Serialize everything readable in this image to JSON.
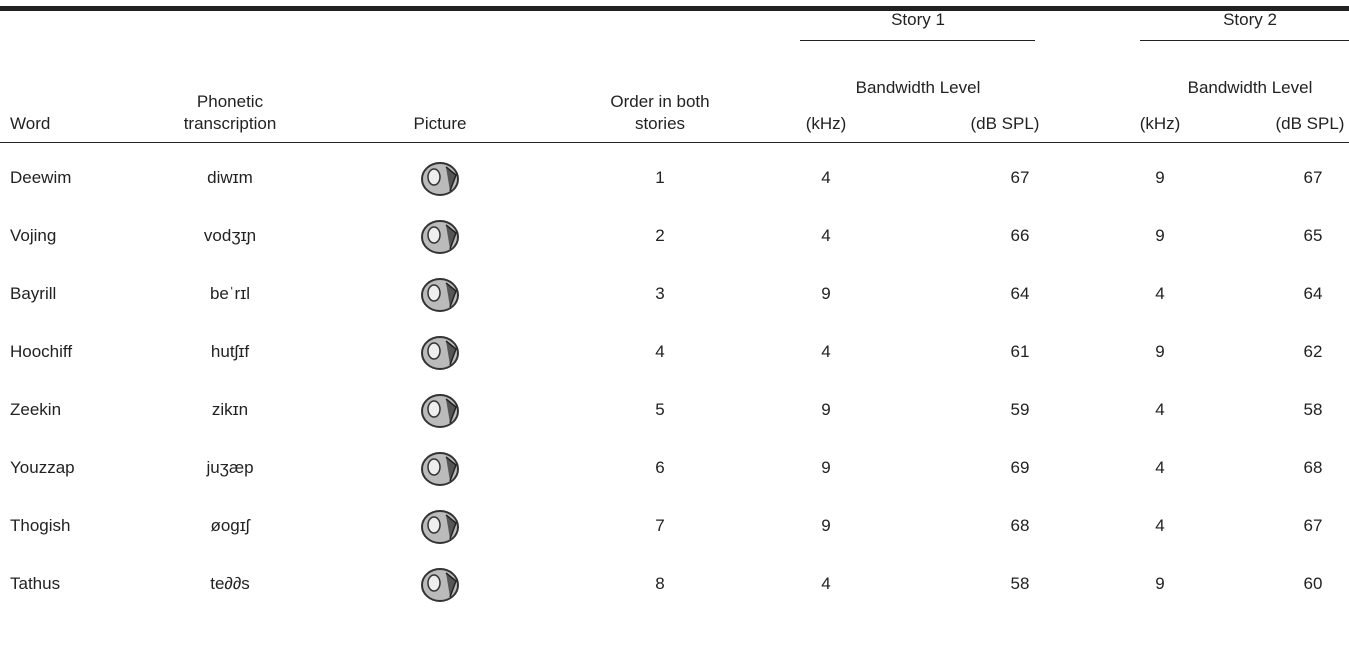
{
  "header": {
    "story_1": "Story 1",
    "story_2": "Story 2",
    "bandwidth_1": "Bandwidth Level",
    "bandwidth_2": "Bandwidth Level",
    "columns": [
      "Word",
      "Phonetic transcription",
      "Picture",
      "Order in both stories",
      "(kHz)",
      "(dB SPL)",
      "(kHz)",
      "(dB SPL)"
    ]
  },
  "rows": [
    [
      "Deewim",
      "diwɪm",
      1,
      4,
      67,
      9,
      67
    ],
    [
      "Vojing",
      "vodʒɪɲ",
      2,
      4,
      66,
      9,
      65
    ],
    [
      "Bayrill",
      "beˈrɪl",
      3,
      9,
      64,
      4,
      64
    ],
    [
      "Hoochiff",
      "hutʃɪf",
      4,
      4,
      61,
      9,
      62
    ],
    [
      "Zeekin",
      "zikɪn",
      5,
      9,
      59,
      4,
      58
    ],
    [
      "Youzzap",
      "juʒæp",
      6,
      9,
      69,
      4,
      68
    ],
    [
      "Thogish",
      "øogɪʃ",
      7,
      9,
      68,
      4,
      67
    ],
    [
      "Tathus",
      "te∂∂s",
      8,
      4,
      58,
      9,
      60
    ]
  ]
}
